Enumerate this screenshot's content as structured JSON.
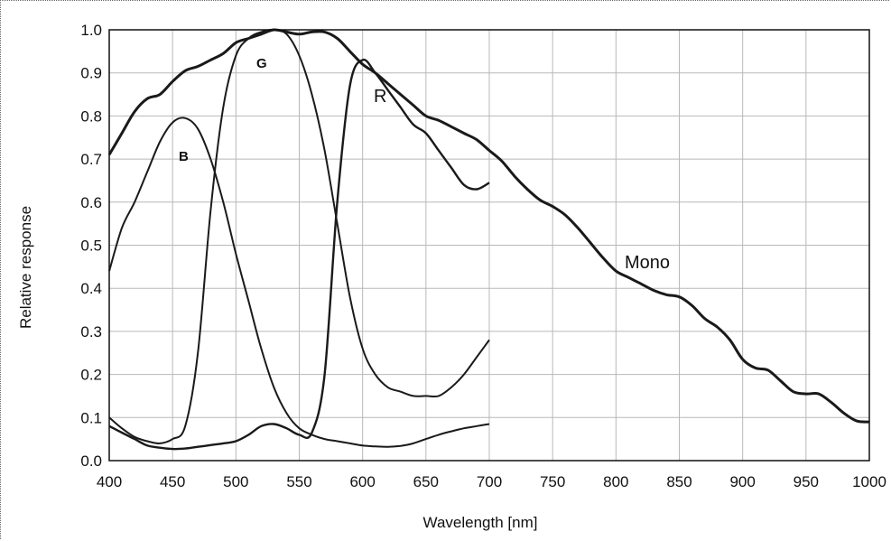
{
  "chart_data": {
    "type": "line",
    "xlabel": "Wavelength [nm]",
    "ylabel": "Relative response",
    "xlim": [
      400,
      1000
    ],
    "ylim": [
      0.0,
      1.0
    ],
    "x_ticks": [
      "400",
      "450",
      "500",
      "550",
      "600",
      "650",
      "700",
      "750",
      "800",
      "850",
      "900",
      "950",
      "1000"
    ],
    "y_ticks": [
      "0.0",
      "0.1",
      "0.2",
      "0.3",
      "0.4",
      "0.5",
      "0.6",
      "0.7",
      "0.8",
      "0.9",
      "1.0"
    ],
    "grid": true,
    "series": [
      {
        "name": "Mono",
        "x": [
          400,
          410,
          420,
          430,
          440,
          450,
          460,
          470,
          480,
          490,
          500,
          510,
          520,
          530,
          540,
          550,
          560,
          570,
          580,
          590,
          600,
          610,
          620,
          630,
          640,
          650,
          660,
          670,
          680,
          690,
          700,
          710,
          720,
          730,
          740,
          750,
          760,
          770,
          780,
          790,
          800,
          810,
          820,
          830,
          840,
          850,
          860,
          870,
          880,
          890,
          900,
          910,
          920,
          930,
          940,
          950,
          960,
          970,
          980,
          990,
          1000
        ],
        "y": [
          0.71,
          0.76,
          0.81,
          0.84,
          0.85,
          0.88,
          0.905,
          0.915,
          0.93,
          0.945,
          0.97,
          0.98,
          0.99,
          1.0,
          0.995,
          0.99,
          0.995,
          0.995,
          0.98,
          0.95,
          0.92,
          0.9,
          0.875,
          0.85,
          0.825,
          0.8,
          0.79,
          0.775,
          0.76,
          0.745,
          0.72,
          0.695,
          0.66,
          0.63,
          0.605,
          0.59,
          0.57,
          0.54,
          0.505,
          0.47,
          0.44,
          0.425,
          0.41,
          0.395,
          0.385,
          0.38,
          0.36,
          0.33,
          0.31,
          0.28,
          0.235,
          0.215,
          0.21,
          0.185,
          0.16,
          0.155,
          0.155,
          0.135,
          0.11,
          0.092,
          0.09
        ]
      },
      {
        "name": "B",
        "x": [
          400,
          410,
          420,
          430,
          440,
          450,
          460,
          470,
          480,
          490,
          500,
          510,
          520,
          530,
          540,
          550,
          560,
          570,
          580,
          590,
          600,
          610,
          620,
          630,
          640,
          650,
          660,
          670,
          680,
          690,
          700
        ],
        "y": [
          0.44,
          0.54,
          0.6,
          0.67,
          0.74,
          0.785,
          0.795,
          0.77,
          0.7,
          0.6,
          0.48,
          0.37,
          0.26,
          0.17,
          0.11,
          0.075,
          0.06,
          0.05,
          0.045,
          0.04,
          0.035,
          0.033,
          0.032,
          0.034,
          0.04,
          0.05,
          0.06,
          0.068,
          0.075,
          0.08,
          0.085
        ]
      },
      {
        "name": "G",
        "x": [
          400,
          410,
          420,
          430,
          440,
          450,
          460,
          470,
          480,
          490,
          500,
          510,
          520,
          530,
          540,
          550,
          560,
          570,
          580,
          590,
          600,
          610,
          620,
          630,
          640,
          650,
          660,
          670,
          680,
          690,
          700
        ],
        "y": [
          0.1,
          0.075,
          0.055,
          0.045,
          0.04,
          0.05,
          0.08,
          0.25,
          0.58,
          0.82,
          0.94,
          0.98,
          0.995,
          1.0,
          0.99,
          0.94,
          0.85,
          0.72,
          0.55,
          0.38,
          0.26,
          0.2,
          0.17,
          0.16,
          0.15,
          0.15,
          0.15,
          0.17,
          0.2,
          0.24,
          0.28
        ]
      },
      {
        "name": "R",
        "x": [
          400,
          410,
          420,
          430,
          440,
          450,
          460,
          470,
          480,
          490,
          500,
          510,
          520,
          530,
          540,
          550,
          560,
          570,
          580,
          590,
          600,
          610,
          620,
          630,
          640,
          650,
          660,
          670,
          680,
          690,
          700
        ],
        "y": [
          0.08,
          0.065,
          0.05,
          0.035,
          0.03,
          0.027,
          0.028,
          0.032,
          0.036,
          0.04,
          0.045,
          0.06,
          0.08,
          0.085,
          0.075,
          0.06,
          0.065,
          0.2,
          0.6,
          0.87,
          0.93,
          0.9,
          0.86,
          0.82,
          0.78,
          0.76,
          0.72,
          0.68,
          0.64,
          0.63,
          0.645
        ]
      }
    ],
    "annotations": [
      "Mono",
      "R",
      "G",
      "B"
    ]
  }
}
